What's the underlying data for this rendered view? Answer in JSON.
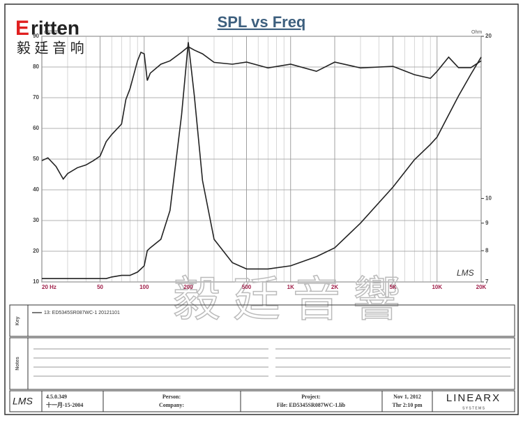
{
  "logo": {
    "brand": "ritten",
    "letter": "E",
    "chinese": "毅 廷 音 响"
  },
  "watermark": "毅廷音響",
  "stamp": "LMS",
  "chart_data": {
    "type": "line",
    "title": "SPL vs Freq",
    "y_label": "dBSPL",
    "y2_label": "Ohm",
    "x": [
      20,
      22,
      25,
      28,
      30,
      35,
      40,
      45,
      50,
      55,
      60,
      70,
      75,
      80,
      90,
      95,
      100,
      105,
      110,
      130,
      150,
      180,
      200,
      220,
      250,
      300,
      400,
      500,
      700,
      1000,
      1500,
      2000,
      3000,
      5000,
      7000,
      9000,
      10000,
      12000,
      14000,
      17000,
      20000
    ],
    "series": [
      {
        "name": "13: ED5345SR087WC-1 20121101",
        "color": "#222222",
        "values": [
          49.5,
          50.4,
          47.6,
          43.5,
          45.3,
          47.2,
          48.1,
          49.5,
          51,
          55.7,
          58,
          61.4,
          69.4,
          72.9,
          82,
          84.8,
          84.3,
          75.6,
          78,
          80.9,
          82,
          84.8,
          86.6,
          85.5,
          84.3,
          81.5,
          80.9,
          81.6,
          79.7,
          80.9,
          78.6,
          81.6,
          79.7,
          80.2,
          77.5,
          76.3,
          78.6,
          83.2,
          79.8,
          79.8,
          82
        ]
      },
      {
        "color": "#222222",
        "axis": "y2",
        "values": [
          7.1,
          7.1,
          7.1,
          7.1,
          7.1,
          7.1,
          7.1,
          7.1,
          7.1,
          7.1,
          7.15,
          7.2,
          7.2,
          7.2,
          7.3,
          7.4,
          7.5,
          8,
          8.1,
          8.4,
          9.5,
          14.3,
          19.5,
          15.5,
          10.8,
          8.4,
          7.6,
          7.4,
          7.4,
          7.5,
          7.8,
          8.1,
          9,
          10.5,
          11.8,
          12.6,
          13,
          14.3,
          15.5,
          17,
          18.3
        ]
      }
    ],
    "xscale": "log",
    "xlim": [
      20,
      20000
    ],
    "xticks": [
      {
        "value": 20,
        "label": "20 Hz"
      },
      50,
      100,
      200,
      500,
      {
        "value": 1000,
        "label": "1K"
      },
      {
        "value": 2000,
        "label": "2K"
      },
      {
        "value": 5000,
        "label": "5K"
      },
      {
        "value": 10000,
        "label": "10K"
      },
      {
        "value": 20000,
        "label": "20K"
      }
    ],
    "xminorticks": [
      30,
      40,
      60,
      70,
      80,
      90,
      300,
      400,
      600,
      700,
      800,
      900,
      3000,
      4000,
      6000,
      7000,
      8000,
      9000
    ],
    "ylim": [
      10,
      90
    ],
    "yticks": [
      10,
      20,
      30,
      40,
      50,
      60,
      70,
      80,
      90
    ],
    "y2scale": "log",
    "y2lim": [
      7,
      20
    ],
    "y2ticks": [
      7,
      8,
      9,
      10,
      20
    ],
    "grid": true
  },
  "key_label": "Key",
  "notes_label": "Notes",
  "footer": {
    "lms": "LMS",
    "version": "4.5.0.349",
    "date": "十一月-15-2004",
    "person": "Person:",
    "company": "Company:",
    "project": "Project:",
    "file": "File: ED5345SR087WC-1.lib",
    "print_date": "Nov 1, 2012",
    "print_time": "Thr  2:10 pm",
    "brand": "LINEARX",
    "brand_sub": "S Y S T E M S"
  }
}
